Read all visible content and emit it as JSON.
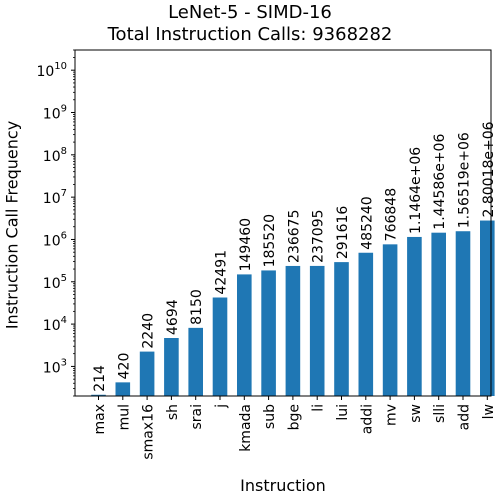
{
  "chart_data": {
    "type": "bar",
    "title": "LeNet-5 - SIMD-16",
    "subtitle": "Total Instruction Calls: 9368282",
    "xlabel": "Instruction",
    "ylabel": "Instruction Call Frequency",
    "yscale": "log",
    "ylim": [
      200,
      30000000000
    ],
    "yticks": [
      {
        "value": 1000,
        "base": "10",
        "exp": "3"
      },
      {
        "value": 10000,
        "base": "10",
        "exp": "4"
      },
      {
        "value": 100000,
        "base": "10",
        "exp": "5"
      },
      {
        "value": 1000000,
        "base": "10",
        "exp": "6"
      },
      {
        "value": 10000000,
        "base": "10",
        "exp": "7"
      },
      {
        "value": 100000000,
        "base": "10",
        "exp": "8"
      },
      {
        "value": 1000000000,
        "base": "10",
        "exp": "9"
      },
      {
        "value": 10000000000,
        "base": "10",
        "exp": "10"
      }
    ],
    "grid": false,
    "bar_color": "#1f77b4",
    "categories": [
      "max",
      "mul",
      "smax16",
      "sh",
      "srai",
      "j",
      "kmada",
      "sub",
      "bge",
      "li",
      "lui",
      "addi",
      "mv",
      "sw",
      "slli",
      "add",
      "lw"
    ],
    "values": [
      214,
      420,
      2240,
      4694,
      8150,
      42491,
      149460,
      185520,
      236675,
      237095,
      291616,
      485240,
      766848,
      1146400,
      1445860,
      1565190,
      2800180
    ],
    "data_labels": [
      "214",
      "420",
      "2240",
      "4694",
      "8150",
      "42491",
      "149460",
      "185520",
      "236675",
      "237095",
      "291616",
      "485240",
      "766848",
      "1.1464e+06",
      "1.44586e+06",
      "1.56519e+06",
      "2.80018e+06"
    ]
  }
}
